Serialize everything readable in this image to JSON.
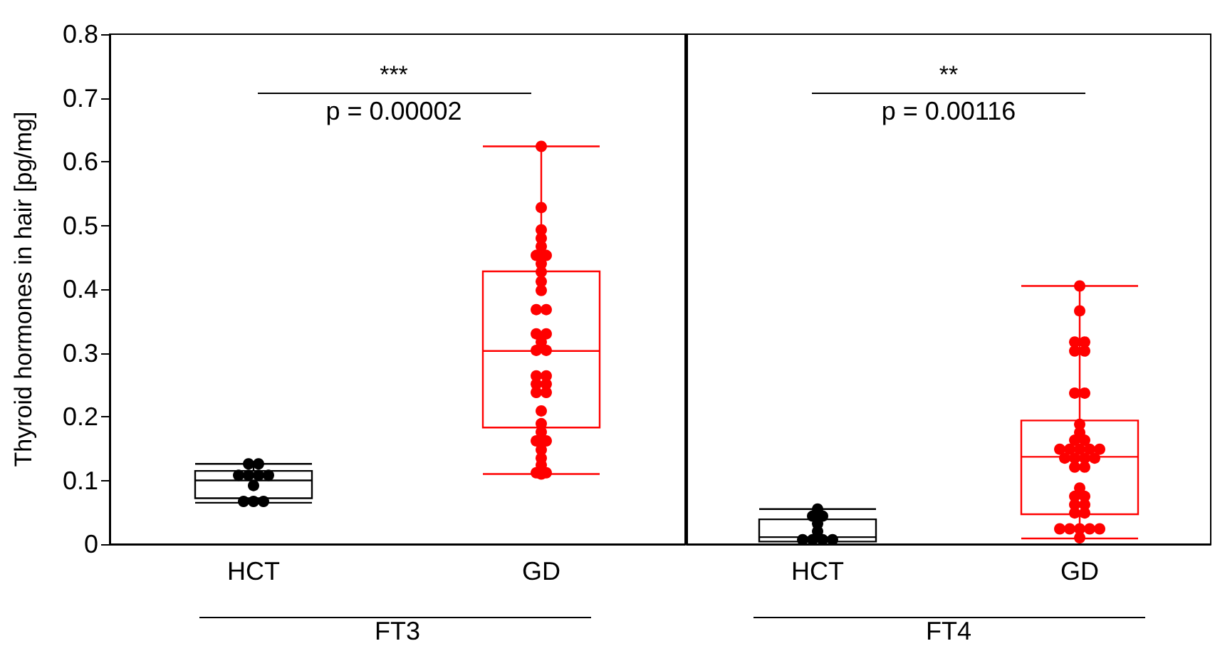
{
  "chart_data": [
    {
      "type": "box",
      "ylabel": "Thyroid hormones in hair [pg/mg]",
      "xlabel": "FT3",
      "categories": [
        "HCT",
        "GD"
      ],
      "colors": [
        "#000000",
        "#ff0000"
      ],
      "boxes": [
        {
          "low": 0.065,
          "q1": 0.072,
          "median": 0.1,
          "q3": 0.115,
          "high": 0.126
        },
        {
          "low": 0.11,
          "q1": 0.183,
          "median": 0.303,
          "q3": 0.428,
          "high": 0.624
        }
      ],
      "series": [
        {
          "type": "scatter",
          "color": "#000000",
          "x": [
            "HCT",
            "HCT",
            "HCT",
            "HCT",
            "HCT",
            "HCT",
            "HCT",
            "HCT",
            "HCT",
            "HCT"
          ],
          "values": [
            0.126,
            0.126,
            0.108,
            0.108,
            0.108,
            0.108,
            0.092,
            0.067,
            0.067,
            0.067
          ]
        },
        {
          "type": "scatter",
          "color": "#ff0000",
          "x": [
            "GD",
            "GD",
            "GD",
            "GD",
            "GD",
            "GD",
            "GD",
            "GD",
            "GD",
            "GD",
            "GD",
            "GD",
            "GD",
            "GD",
            "GD",
            "GD",
            "GD",
            "GD",
            "GD",
            "GD",
            "GD",
            "GD",
            "GD",
            "GD",
            "GD",
            "GD",
            "GD",
            "GD",
            "GD",
            "GD",
            "GD",
            "GD",
            "GD",
            "GD",
            "GD"
          ],
          "values": [
            0.624,
            0.528,
            0.493,
            0.48,
            0.467,
            0.453,
            0.453,
            0.44,
            0.427,
            0.412,
            0.398,
            0.368,
            0.368,
            0.33,
            0.33,
            0.317,
            0.304,
            0.304,
            0.264,
            0.264,
            0.251,
            0.251,
            0.238,
            0.238,
            0.209,
            0.189,
            0.176,
            0.162,
            0.162,
            0.148,
            0.135,
            0.124,
            0.112,
            0.112,
            0.11
          ]
        }
      ],
      "ylim": [
        0,
        0.8
      ],
      "yticks": [
        0,
        0.1,
        0.2,
        0.3,
        0.4,
        0.5,
        0.6,
        0.7,
        0.8
      ],
      "marker": "circle",
      "grid": false,
      "annotations": [
        "***",
        "p = 0.00002"
      ]
    },
    {
      "type": "box",
      "xlabel": "FT4",
      "categories": [
        "HCT",
        "GD"
      ],
      "colors": [
        "#000000",
        "#ff0000"
      ],
      "boxes": [
        {
          "low": 0.004,
          "q1": 0.004,
          "median": 0.011,
          "q3": 0.039,
          "high": 0.055
        },
        {
          "low": 0.009,
          "q1": 0.047,
          "median": 0.137,
          "q3": 0.194,
          "high": 0.405
        }
      ],
      "series": [
        {
          "type": "scatter",
          "color": "#000000",
          "x": [
            "HCT",
            "HCT",
            "HCT",
            "HCT",
            "HCT",
            "HCT",
            "HCT",
            "HCT",
            "HCT"
          ],
          "values": [
            0.055,
            0.044,
            0.044,
            0.032,
            0.02,
            0.007,
            0.007,
            0.007,
            0.007
          ]
        },
        {
          "type": "scatter",
          "color": "#ff0000",
          "x": [
            "GD",
            "GD",
            "GD",
            "GD",
            "GD",
            "GD",
            "GD",
            "GD",
            "GD",
            "GD",
            "GD",
            "GD",
            "GD",
            "GD",
            "GD",
            "GD",
            "GD",
            "GD",
            "GD",
            "GD",
            "GD",
            "GD",
            "GD",
            "GD",
            "GD",
            "GD",
            "GD",
            "GD",
            "GD",
            "GD",
            "GD",
            "GD",
            "GD",
            "GD",
            "GD",
            "GD"
          ],
          "values": [
            0.405,
            0.366,
            0.317,
            0.317,
            0.303,
            0.303,
            0.237,
            0.237,
            0.188,
            0.175,
            0.163,
            0.163,
            0.149,
            0.149,
            0.149,
            0.149,
            0.149,
            0.135,
            0.135,
            0.135,
            0.135,
            0.121,
            0.121,
            0.088,
            0.075,
            0.075,
            0.062,
            0.062,
            0.049,
            0.049,
            0.024,
            0.024,
            0.024,
            0.024,
            0.024,
            0.01
          ]
        }
      ],
      "ylim": [
        0,
        0.8
      ],
      "yticks": [
        0,
        0.1,
        0.2,
        0.3,
        0.4,
        0.5,
        0.6,
        0.7,
        0.8
      ],
      "tick_labels": "x",
      "marker": "circle",
      "grid": false,
      "annotations": [
        "**",
        "p = 0.00116"
      ]
    }
  ]
}
